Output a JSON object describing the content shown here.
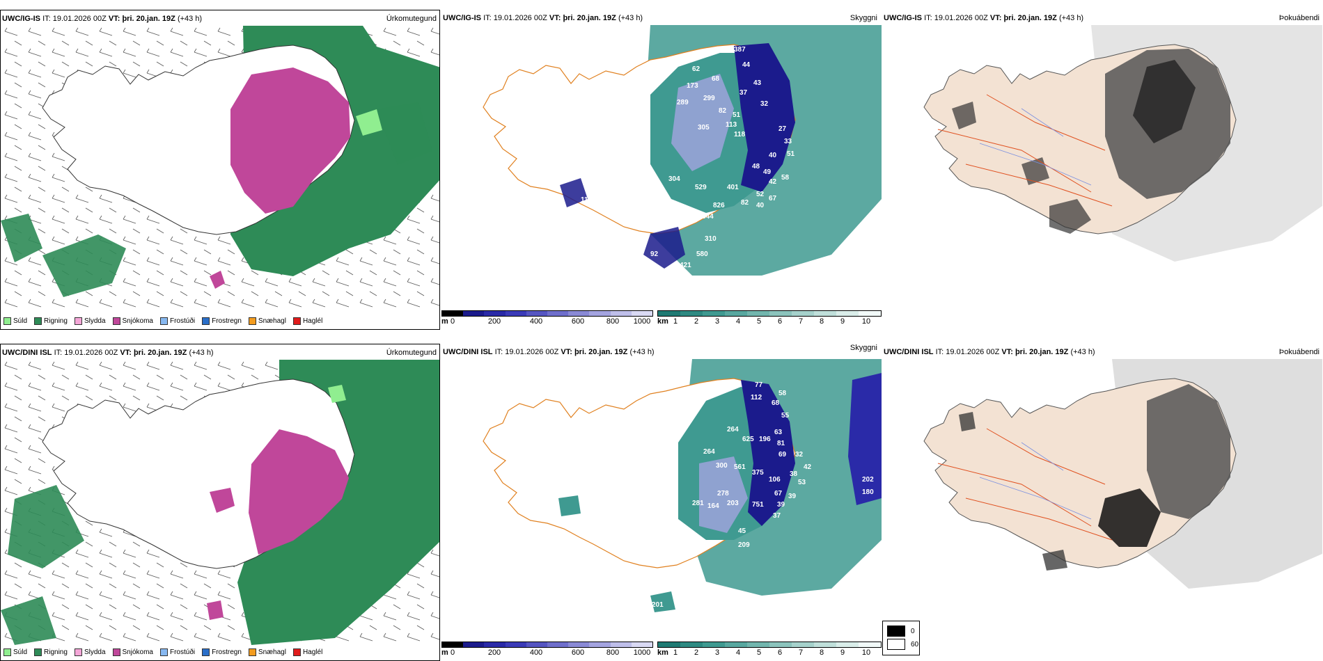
{
  "rows": [
    {
      "model": "UWC/IG-IS",
      "it_label": "IT:",
      "it_value": "19.01.2026 00Z",
      "vt_label": "VT:",
      "vt_value": "þri. 20.jan. 19Z",
      "lead": "(+43 h)"
    },
    {
      "model": "UWC/DINI ISL",
      "it_label": "IT:",
      "it_value": "19.01.2026 00Z",
      "vt_label": "VT:",
      "vt_value": "þri. 20.jan. 19Z",
      "lead": "(+43 h)"
    }
  ],
  "panels": {
    "precip_type": "Úrkomutegund",
    "visibility": "Skyggni",
    "fog_index": "Þokuábendi"
  },
  "precip_legend": [
    {
      "label": "Súld",
      "color": "#90ee90"
    },
    {
      "label": "Rigning",
      "color": "#2e8b57"
    },
    {
      "label": "Slydda",
      "color": "#f4a6d7"
    },
    {
      "label": "Snjókoma",
      "color": "#c0479a"
    },
    {
      "label": "Frostúði",
      "color": "#87b8f0"
    },
    {
      "label": "Frostregn",
      "color": "#2a6fc9"
    },
    {
      "label": "Snæhagl",
      "color": "#f39c1f"
    },
    {
      "label": "Haglél",
      "color": "#e01b1b"
    }
  ],
  "colorbar_m": {
    "unit": "m",
    "ticks": [
      "0",
      "200",
      "400",
      "600",
      "800",
      "1000"
    ],
    "colors": [
      "#000000",
      "#1b1b8c",
      "#2a2aa8",
      "#3b3bb8",
      "#5555c2",
      "#6f6fcc",
      "#8a8ad6",
      "#a4a4e0",
      "#bfbfea",
      "#dadaf4"
    ]
  },
  "colorbar_km": {
    "unit": "km",
    "ticks": [
      "1",
      "2",
      "3",
      "4",
      "5",
      "6",
      "7",
      "8",
      "9",
      "10"
    ],
    "colors": [
      "#1f7a73",
      "#2e8a82",
      "#3f9a91",
      "#58a8a0",
      "#72b6ae",
      "#8cc4bd",
      "#a6d2cc",
      "#c0e0db",
      "#daeeea",
      "#f2faf9"
    ]
  },
  "fog_legend": [
    {
      "label": "0",
      "color": "#000000"
    },
    {
      "label": "60",
      "color": "#ffffff"
    }
  ],
  "visibility_labels": [
    [
      "387",
      "62",
      "44",
      "68",
      "43",
      "173",
      "37",
      "299",
      "32",
      "289",
      "82",
      "51",
      "305",
      "113",
      "118",
      "27",
      "33",
      "40",
      "51",
      "48",
      "49",
      "42",
      "58",
      "52",
      "67",
      "40",
      "82",
      "826",
      "401",
      "529",
      "304",
      "111",
      "92",
      "40",
      "760",
      "421",
      "580",
      "310",
      "544"
    ],
    [
      "77",
      "58",
      "112",
      "68",
      "55",
      "264",
      "625",
      "196",
      "63",
      "81",
      "69",
      "264",
      "300",
      "561",
      "375",
      "32",
      "42",
      "38",
      "53",
      "106",
      "67",
      "39",
      "39",
      "37",
      "278",
      "164",
      "203",
      "751",
      "45",
      "209",
      "281",
      "201",
      "202",
      "180"
    ]
  ]
}
